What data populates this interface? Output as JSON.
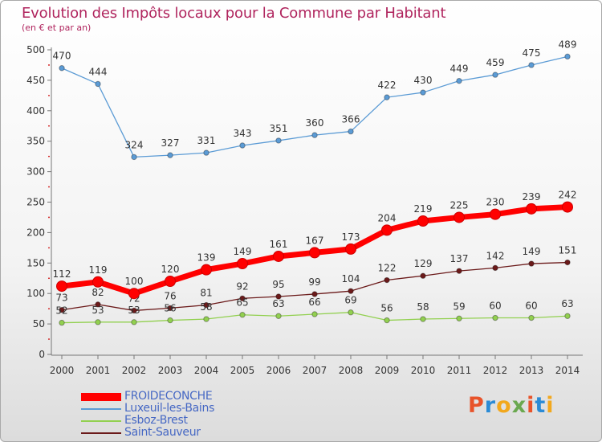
{
  "header": {
    "title": "Evolution des Impôts locaux pour la Commune par Habitant",
    "subtitle": "(en € et par an)"
  },
  "logo": {
    "text": "Proxiti",
    "colors": [
      "#e8532a",
      "#2b8bd6",
      "#f2a81d",
      "#6aa84f",
      "#e8532a",
      "#2b8bd6",
      "#f2a81d"
    ]
  },
  "chart_data": {
    "type": "line",
    "x": [
      2000,
      2001,
      2002,
      2003,
      2004,
      2005,
      2006,
      2007,
      2008,
      2009,
      2010,
      2011,
      2012,
      2013,
      2014
    ],
    "ylim": [
      0,
      500
    ],
    "yticks": [
      0,
      50,
      100,
      150,
      200,
      250,
      300,
      350,
      400,
      450,
      500
    ],
    "grid": false,
    "legend_position": "bottom-left",
    "series": [
      {
        "name": "FROIDECONCHE",
        "color": "#ff0000",
        "highlight": true,
        "values": [
          112,
          119,
          100,
          120,
          139,
          149,
          161,
          167,
          173,
          204,
          219,
          225,
          230,
          239,
          242
        ]
      },
      {
        "name": "Luxeuil-les-Bains",
        "color": "#5b9bd5",
        "highlight": false,
        "values": [
          470,
          444,
          324,
          327,
          331,
          343,
          351,
          360,
          366,
          422,
          430,
          449,
          459,
          475,
          489
        ]
      },
      {
        "name": "Esboz-Brest",
        "color": "#92d050",
        "highlight": false,
        "values": [
          52,
          53,
          53,
          56,
          58,
          65,
          63,
          66,
          69,
          56,
          58,
          59,
          60,
          60,
          63
        ]
      },
      {
        "name": "Saint-Sauveur",
        "color": "#6b1a1a",
        "highlight": false,
        "values": [
          73,
          82,
          72,
          76,
          81,
          92,
          95,
          99,
          104,
          122,
          129,
          137,
          142,
          149,
          151
        ]
      }
    ]
  }
}
